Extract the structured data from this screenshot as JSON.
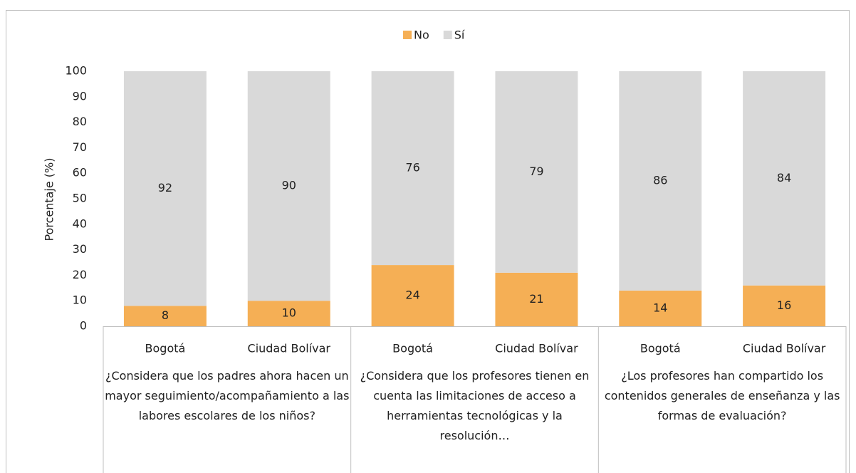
{
  "chart_data": {
    "type": "bar",
    "stacked": true,
    "y_label": "Porcentaje (%)",
    "groups": [
      {
        "label": "¿Considera que los padres ahora hacen un mayor seguimiento/acompañamiento a las labores escolares de los niños?",
        "categories": [
          "Bogotá",
          "Ciudad Bolívar"
        ]
      },
      {
        "label": "¿Considera que los profesores tienen en cuenta las limitaciones de acceso a herramientas tecnológicas y la resolución…",
        "categories": [
          "Bogotá",
          "Ciudad Bolívar"
        ]
      },
      {
        "label": "¿Los profesores han compartido los contenidos generales de enseñanza y las formas de evaluación?",
        "categories": [
          "Bogotá",
          "Ciudad Bolívar"
        ]
      }
    ],
    "series": [
      {
        "name": "No",
        "color": "#f5af55",
        "values": [
          8,
          10,
          24,
          21,
          14,
          16
        ]
      },
      {
        "name": "Sí",
        "color": "#d9d9d9",
        "values": [
          92,
          90,
          76,
          79,
          86,
          84
        ]
      }
    ],
    "ylim": [
      0,
      100
    ],
    "yticks": [
      0,
      10,
      20,
      30,
      40,
      50,
      60,
      70,
      80,
      90,
      100
    ],
    "legend": "top"
  }
}
